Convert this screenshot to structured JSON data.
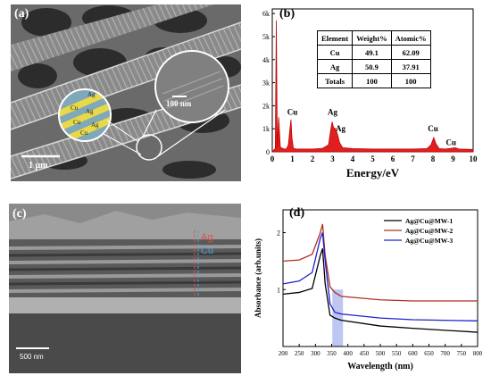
{
  "panel_a": {
    "label": "(a)",
    "inset_scale": "100 nm",
    "scale": "1 μm",
    "layer_labels": [
      "Ag",
      "Cu",
      "Ag",
      "Cu",
      "Ag",
      "Cu"
    ]
  },
  "panel_b": {
    "label": "(b)",
    "table": {
      "headers": [
        "Element",
        "Weight%",
        "Atomic%"
      ],
      "rows": [
        [
          "Cu",
          "49.1",
          "62.09"
        ],
        [
          "Ag",
          "50.9",
          "37.91"
        ],
        [
          "Totals",
          "100",
          "100"
        ]
      ]
    }
  },
  "panel_c": {
    "label": "(c)",
    "ag_label": "Ag",
    "cu_label": "Cu",
    "scale": "500 nm"
  },
  "panel_d": {
    "label": "(d)"
  },
  "chart_data": [
    {
      "type": "line",
      "title": "",
      "xlabel": "Energy/eV",
      "ylabel": "",
      "xlim": [
        0,
        10
      ],
      "ylim": [
        0,
        6200
      ],
      "x_ticks": [
        0,
        1,
        2,
        3,
        4,
        5,
        6,
        7,
        8,
        9,
        10
      ],
      "y_ticks": [
        0,
        1000,
        2000,
        3000,
        4000,
        5000,
        6000
      ],
      "y_tick_labels": [
        "0",
        "1k",
        "2k",
        "3k",
        "4k",
        "5k",
        "6k"
      ],
      "series": [
        {
          "x": [
            0,
            0.15,
            0.2,
            0.25,
            0.32,
            0.4,
            0.5,
            0.6,
            0.7,
            0.8,
            0.88,
            0.93,
            0.98,
            1.05,
            1.2,
            1.5,
            2.0,
            2.5,
            2.8,
            2.9,
            2.98,
            3.05,
            3.15,
            3.25,
            3.35,
            3.5,
            4.0,
            5.0,
            6.0,
            7.0,
            7.7,
            7.9,
            8.04,
            8.15,
            8.3,
            8.6,
            8.9,
            9.1,
            9.3,
            10.0
          ],
          "y": [
            0,
            150,
            5700,
            200,
            1500,
            200,
            150,
            120,
            120,
            300,
            1000,
            1400,
            600,
            150,
            120,
            120,
            120,
            150,
            300,
            900,
            1300,
            1050,
            1000,
            750,
            400,
            180,
            140,
            120,
            120,
            120,
            140,
            300,
            620,
            350,
            140,
            120,
            150,
            180,
            120,
            100
          ]
        }
      ],
      "annotations": [
        {
          "text": "Cu",
          "x": 1.0,
          "y": 1600
        },
        {
          "text": "Ag",
          "x": 3.0,
          "y": 1600
        },
        {
          "text": "Ag",
          "x": 3.4,
          "y": 900
        },
        {
          "text": "Cu",
          "x": 8.0,
          "y": 900
        },
        {
          "text": "Cu",
          "x": 8.9,
          "y": 300
        }
      ]
    },
    {
      "type": "line",
      "title": "",
      "xlabel": "Wavelength (nm)",
      "ylabel": "Absorbance (arb.units)",
      "xlim": [
        200,
        800
      ],
      "ylim": [
        0,
        2.4
      ],
      "x_ticks": [
        200,
        250,
        300,
        350,
        400,
        450,
        500,
        550,
        600,
        650,
        700,
        750,
        800
      ],
      "y_ticks": [
        1,
        2
      ],
      "legend_position": "top-right",
      "series": [
        {
          "name": "Ag@Cu@MW-1",
          "color": "#000000",
          "x": [
            200,
            250,
            290,
            315,
            322,
            330,
            345,
            360,
            380,
            500,
            600,
            800
          ],
          "y": [
            0.92,
            0.95,
            1.02,
            1.6,
            1.72,
            1.1,
            0.55,
            0.5,
            0.46,
            0.36,
            0.32,
            0.25
          ]
        },
        {
          "name": "Ag@Cu@MW-2",
          "color": "#b03020",
          "x": [
            200,
            250,
            290,
            315,
            322,
            330,
            345,
            360,
            380,
            500,
            600,
            800
          ],
          "y": [
            1.5,
            1.52,
            1.62,
            2.0,
            2.15,
            1.6,
            1.05,
            0.95,
            0.88,
            0.82,
            0.8,
            0.8
          ]
        },
        {
          "name": "Ag@Cu@MW-3",
          "color": "#2020d0",
          "x": [
            200,
            250,
            290,
            315,
            322,
            330,
            345,
            360,
            380,
            500,
            600,
            800
          ],
          "y": [
            1.1,
            1.15,
            1.3,
            1.9,
            2.0,
            1.5,
            0.75,
            0.6,
            0.57,
            0.5,
            0.47,
            0.45
          ]
        }
      ]
    }
  ]
}
